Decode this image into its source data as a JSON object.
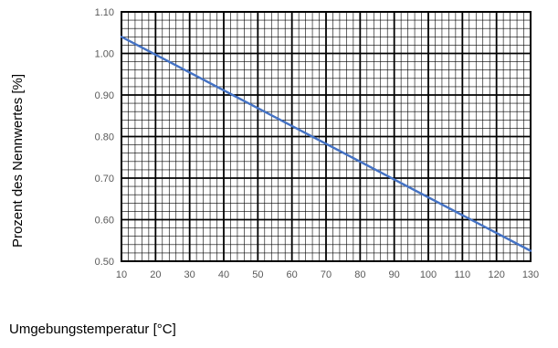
{
  "chart_data": {
    "type": "line",
    "title": "",
    "xlabel": "Umgebungstemperatur [°C]",
    "ylabel": "Prozent des Nennwertes [%]",
    "xlim": [
      10,
      130
    ],
    "ylim": [
      0.5,
      1.1
    ],
    "x_ticks": [
      "10",
      "20",
      "30",
      "40",
      "50",
      "60",
      "70",
      "80",
      "90",
      "100",
      "110",
      "120",
      "130"
    ],
    "y_ticks": [
      "0.50",
      "0.60",
      "0.70",
      "0.80",
      "0.90",
      "1.00",
      "1.10"
    ],
    "x_major_step": 10,
    "x_minor_step": 2,
    "y_major_step": 0.1,
    "y_minor_step": 0.02,
    "grid": true,
    "legend": "none",
    "series": [
      {
        "x": [
          10,
          130
        ],
        "y": [
          1.04,
          0.525
        ],
        "color": "#4472c4"
      }
    ]
  }
}
